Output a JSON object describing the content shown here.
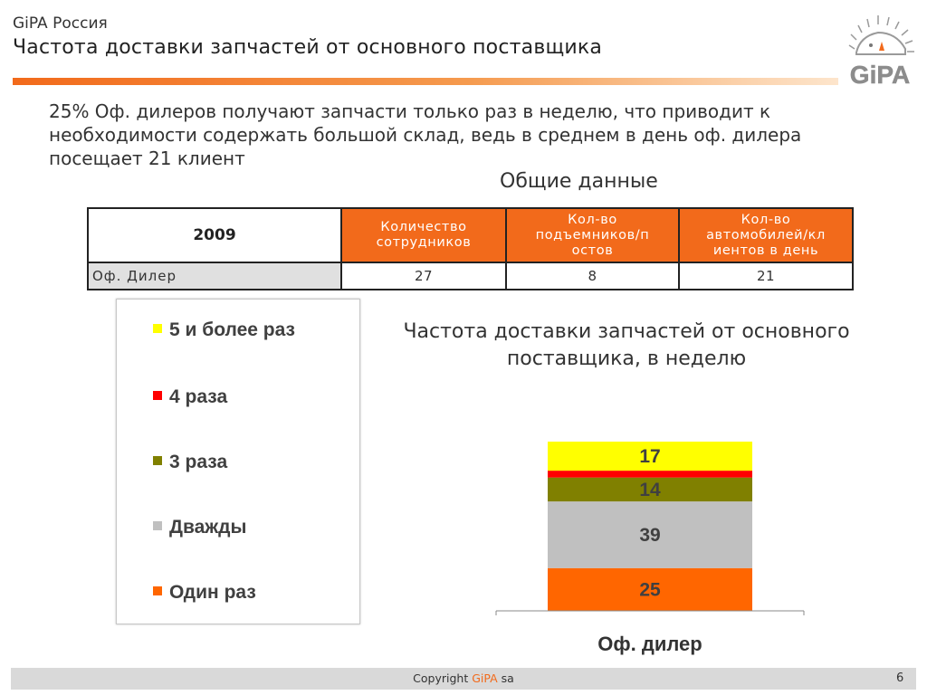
{
  "header": {
    "org": "GiPA Россия",
    "title": "Частота доставки запчастей от основного поставщика",
    "logo_text": "GiPA"
  },
  "intro": "25% Оф. дилеров получают запчасти только раз в неделю, что приводит к необходимости содержать большой склад, ведь в среднем в день оф. дилера посещает 21 клиент",
  "overall_label": "Общие данные",
  "table": {
    "year": "2009",
    "columns": [
      [
        "Количество",
        "сотрудников"
      ],
      [
        "Кол-во",
        "подъемников/п",
        "остов"
      ],
      [
        "Кол-во",
        "автомобилей/кл",
        "иентов в день"
      ]
    ],
    "row_label": "Оф. Дилер",
    "values": [
      "27",
      "8",
      "21"
    ]
  },
  "legend": [
    {
      "label": "5 и более раз",
      "color": "#ffff00"
    },
    {
      "label": "4 раза",
      "color": "#ff0000"
    },
    {
      "label": "3 раза",
      "color": "#808000"
    },
    {
      "label": "Дважды",
      "color": "#c0c0c0"
    },
    {
      "label": "Один раз",
      "color": "#ff6600"
    }
  ],
  "chart_title": [
    "Частота доставки запчастей от основного",
    "поставщика, в неделю"
  ],
  "chart_data": {
    "type": "bar",
    "stacked": true,
    "categories": [
      "Оф. дилер"
    ],
    "series": [
      {
        "name": "Один раз",
        "values": [
          25
        ],
        "label": "25",
        "color": "#ff6600"
      },
      {
        "name": "Дважды",
        "values": [
          39
        ],
        "label": "39",
        "color": "#c0c0c0"
      },
      {
        "name": "3 раза",
        "values": [
          14
        ],
        "label": "14",
        "color": "#808000"
      },
      {
        "name": "4 раза",
        "values": [
          4
        ],
        "label": "",
        "color": "#ff0000"
      },
      {
        "name": "5 и более раз",
        "values": [
          17
        ],
        "label": "17",
        "color": "#ffff00"
      }
    ],
    "ylim": [
      0,
      99
    ]
  },
  "footer": {
    "copyright_prefix": "Copyright ",
    "brand": "GiPA",
    "copyright_suffix": " sa",
    "page": "6"
  }
}
